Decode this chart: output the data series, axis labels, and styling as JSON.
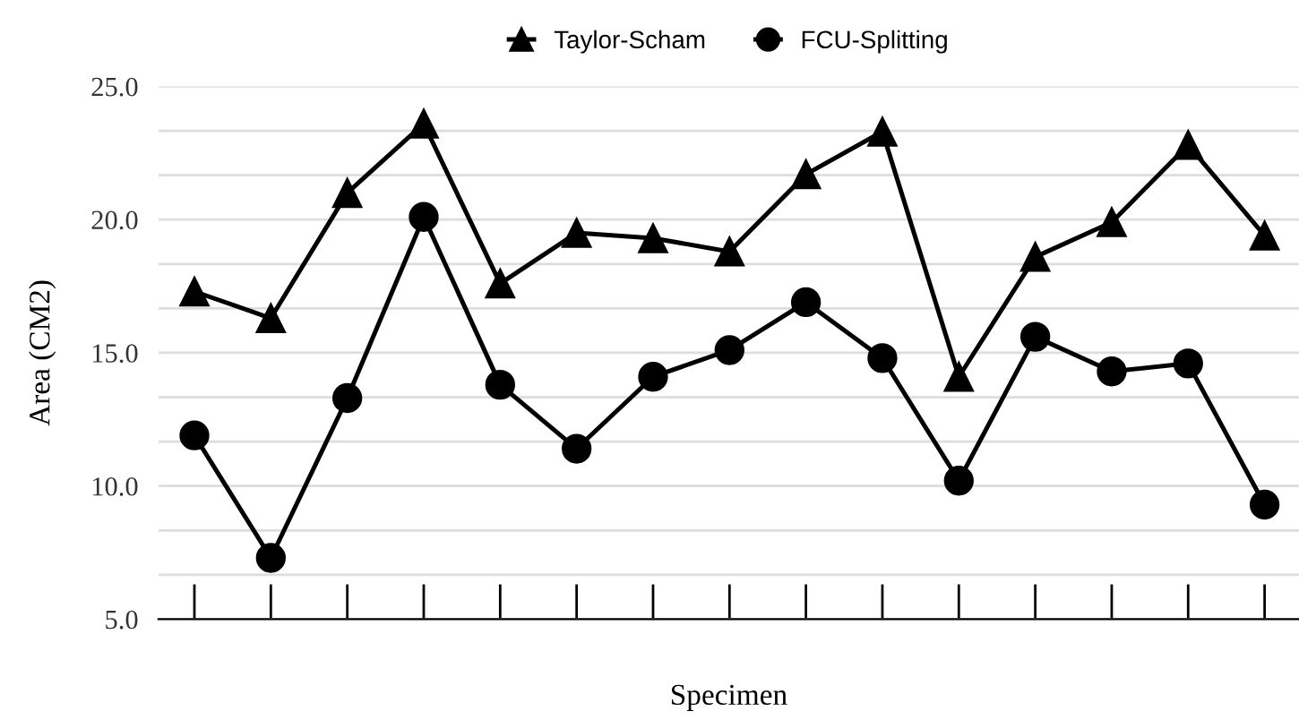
{
  "chart_data": {
    "type": "line",
    "xlabel": "Specimen",
    "ylabel": "Area (CM2)",
    "categories": [
      null,
      null,
      null,
      null,
      null,
      null,
      null,
      null,
      null,
      null,
      null,
      null,
      null,
      null,
      null
    ],
    "series": [
      {
        "name": "Taylor-Scham",
        "color": "#000000",
        "marker": "triangle",
        "values": [
          17.3,
          16.3,
          21.0,
          23.6,
          17.6,
          19.5,
          19.3,
          18.8,
          21.7,
          23.3,
          14.1,
          18.6,
          19.9,
          22.8,
          19.4
        ]
      },
      {
        "name": "FCU-Splitting",
        "color": "#000000",
        "marker": "circle",
        "values": [
          11.9,
          7.3,
          13.3,
          20.1,
          13.8,
          11.4,
          14.1,
          15.1,
          16.9,
          14.8,
          10.2,
          15.6,
          14.3,
          14.6,
          9.3
        ]
      }
    ],
    "ylim": [
      5,
      25
    ],
    "yticks": [
      {
        "value": 5,
        "label": "5.0"
      },
      {
        "value": 6.667,
        "label": null
      },
      {
        "value": 8.333,
        "label": null
      },
      {
        "value": 10,
        "label": "10.0"
      },
      {
        "value": 11.667,
        "label": null
      },
      {
        "value": 13.333,
        "label": null
      },
      {
        "value": 15,
        "label": "15.0"
      },
      {
        "value": 16.667,
        "label": null
      },
      {
        "value": 18.333,
        "label": null
      },
      {
        "value": 20,
        "label": "20.0"
      },
      {
        "value": 21.667,
        "label": null
      },
      {
        "value": 23.333,
        "label": null
      },
      {
        "value": 25,
        "label": "25.0"
      }
    ],
    "grid": "y",
    "legend": "top",
    "line_style": "solid"
  }
}
